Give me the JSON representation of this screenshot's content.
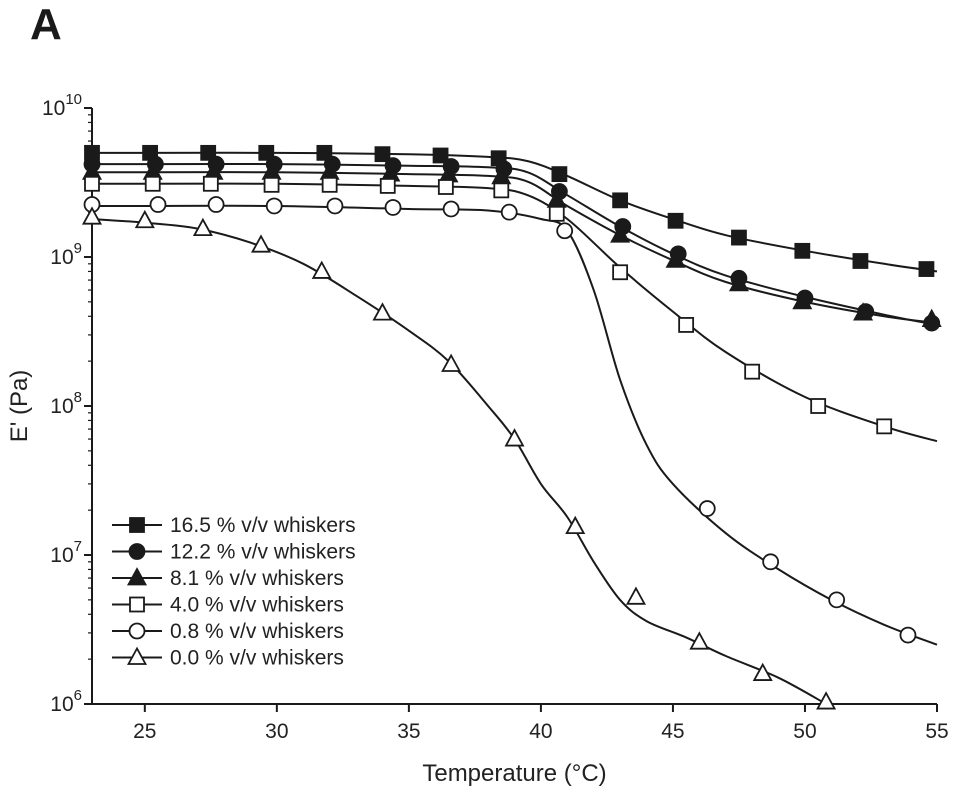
{
  "panel_label": "A",
  "chart_data": {
    "type": "line",
    "title": "",
    "xlabel": "Temperature (°C)",
    "ylabel": "E' (Pa)",
    "xlim": [
      23,
      55
    ],
    "ylim": [
      1000000,
      10000000000
    ],
    "yscale": "log",
    "x_ticks": [
      25,
      30,
      35,
      40,
      45,
      50,
      55
    ],
    "y_ticks": [
      {
        "value": 1000000,
        "base": "10",
        "exp": "6"
      },
      {
        "value": 10000000,
        "base": "10",
        "exp": "7"
      },
      {
        "value": 100000000,
        "base": "10",
        "exp": "8"
      },
      {
        "value": 1000000000,
        "base": "10",
        "exp": "9"
      },
      {
        "value": 10000000000,
        "base": "10",
        "exp": "10"
      }
    ],
    "legend_position": "bottom-left",
    "series": [
      {
        "name": "16.5 % v/v whiskers",
        "marker": "square-filled",
        "curve": [
          [
            23,
            5000000000.0
          ],
          [
            25,
            5000000000.0
          ],
          [
            30,
            5000000000.0
          ],
          [
            35,
            4900000000.0
          ],
          [
            38,
            4700000000.0
          ],
          [
            39.5,
            4400000000.0
          ],
          [
            41,
            3500000000.0
          ],
          [
            43,
            2400000000.0
          ],
          [
            45,
            1800000000.0
          ],
          [
            47,
            1400000000.0
          ],
          [
            50,
            1100000000.0
          ],
          [
            53,
            900000000.0
          ],
          [
            55,
            800000000.0
          ]
        ],
        "markers": [
          [
            23,
            5000000000.0
          ],
          [
            25.2,
            5000000000.0
          ],
          [
            27.4,
            5000000000.0
          ],
          [
            29.6,
            5000000000.0
          ],
          [
            31.8,
            5000000000.0
          ],
          [
            34,
            4900000000.0
          ],
          [
            36.2,
            4800000000.0
          ],
          [
            38.4,
            4600000000.0
          ],
          [
            40.7,
            3600000000.0
          ],
          [
            43,
            2400000000.0
          ],
          [
            45.1,
            1750000000.0
          ],
          [
            47.5,
            1350000000.0
          ],
          [
            49.9,
            1100000000.0
          ],
          [
            52.1,
            940000000.0
          ],
          [
            54.6,
            830000000.0
          ]
        ]
      },
      {
        "name": "12.2 % v/v whiskers",
        "marker": "circle-filled",
        "curve": [
          [
            23,
            4200000000.0
          ],
          [
            25,
            4200000000.0
          ],
          [
            30,
            4200000000.0
          ],
          [
            35,
            4100000000.0
          ],
          [
            38,
            4000000000.0
          ],
          [
            39.5,
            3700000000.0
          ],
          [
            41,
            2600000000.0
          ],
          [
            43,
            1600000000.0
          ],
          [
            45,
            1050000000.0
          ],
          [
            47,
            750000000.0
          ],
          [
            50,
            540000000.0
          ],
          [
            53,
            410000000.0
          ],
          [
            55,
            350000000.0
          ]
        ],
        "markers": [
          [
            23,
            4200000000.0
          ],
          [
            25.4,
            4200000000.0
          ],
          [
            27.7,
            4200000000.0
          ],
          [
            29.9,
            4200000000.0
          ],
          [
            32.1,
            4200000000.0
          ],
          [
            34.4,
            4100000000.0
          ],
          [
            36.6,
            4050000000.0
          ],
          [
            38.6,
            3900000000.0
          ],
          [
            40.7,
            2750000000.0
          ],
          [
            43.1,
            1600000000.0
          ],
          [
            45.2,
            1050000000.0
          ],
          [
            47.5,
            720000000.0
          ],
          [
            50,
            530000000.0
          ],
          [
            52.3,
            430000000.0
          ],
          [
            54.8,
            360000000.0
          ]
        ]
      },
      {
        "name": "8.1 % v/v whiskers",
        "marker": "triangle-filled",
        "curve": [
          [
            23,
            3700000000.0
          ],
          [
            25,
            3700000000.0
          ],
          [
            30,
            3700000000.0
          ],
          [
            35,
            3600000000.0
          ],
          [
            38,
            3500000000.0
          ],
          [
            39.5,
            3200000000.0
          ],
          [
            41,
            2200000000.0
          ],
          [
            43,
            1400000000.0
          ],
          [
            45,
            950000000.0
          ],
          [
            47,
            680000000.0
          ],
          [
            50,
            500000000.0
          ],
          [
            53,
            400000000.0
          ],
          [
            55,
            360000000.0
          ]
        ],
        "markers": [
          [
            23,
            3700000000.0
          ],
          [
            25.3,
            3700000000.0
          ],
          [
            27.6,
            3700000000.0
          ],
          [
            29.8,
            3700000000.0
          ],
          [
            32,
            3700000000.0
          ],
          [
            34.3,
            3600000000.0
          ],
          [
            36.5,
            3550000000.0
          ],
          [
            38.5,
            3450000000.0
          ],
          [
            40.6,
            2400000000.0
          ],
          [
            43,
            1400000000.0
          ],
          [
            45.1,
            950000000.0
          ],
          [
            47.5,
            660000000.0
          ],
          [
            49.9,
            500000000.0
          ],
          [
            52.2,
            420000000.0
          ],
          [
            54.8,
            380000000.0
          ]
        ]
      },
      {
        "name": "4.0 % v/v whiskers",
        "marker": "square-open",
        "curve": [
          [
            23,
            3100000000.0
          ],
          [
            25,
            3100000000.0
          ],
          [
            30,
            3100000000.0
          ],
          [
            35,
            3000000000.0
          ],
          [
            38,
            2900000000.0
          ],
          [
            39.5,
            2600000000.0
          ],
          [
            41,
            1800000000.0
          ],
          [
            43,
            850000000.0
          ],
          [
            45,
            430000000.0
          ],
          [
            47,
            230000000.0
          ],
          [
            50,
            115000000.0
          ],
          [
            53,
            73000000.0
          ],
          [
            55,
            58000000.0
          ]
        ],
        "markers": [
          [
            23,
            3100000000.0
          ],
          [
            25.3,
            3100000000.0
          ],
          [
            27.5,
            3100000000.0
          ],
          [
            29.8,
            3050000000.0
          ],
          [
            32,
            3050000000.0
          ],
          [
            34.2,
            3000000000.0
          ],
          [
            36.4,
            2950000000.0
          ],
          [
            38.5,
            2800000000.0
          ],
          [
            40.6,
            1950000000.0
          ],
          [
            43,
            790000000.0
          ],
          [
            45.5,
            350000000.0
          ],
          [
            48,
            170000000.0
          ],
          [
            50.5,
            100000000.0
          ],
          [
            53,
            73000000.0
          ]
        ]
      },
      {
        "name": "0.8 % v/v whiskers",
        "marker": "circle-open",
        "curve": [
          [
            23,
            2200000000.0
          ],
          [
            25,
            2200000000.0
          ],
          [
            30,
            2200000000.0
          ],
          [
            35,
            2100000000.0
          ],
          [
            38,
            2050000000.0
          ],
          [
            40,
            1800000000.0
          ],
          [
            41,
            1500000000.0
          ],
          [
            42,
            600000000.0
          ],
          [
            43,
            150000000.0
          ],
          [
            44,
            55000000.0
          ],
          [
            45,
            30000000.0
          ],
          [
            47,
            14000000.0
          ],
          [
            49,
            8000000.0
          ],
          [
            51,
            5000000.0
          ],
          [
            53,
            3400000.0
          ],
          [
            55,
            2500000.0
          ]
        ],
        "markers": [
          [
            23,
            2250000000.0
          ],
          [
            25.5,
            2250000000.0
          ],
          [
            27.7,
            2250000000.0
          ],
          [
            29.9,
            2200000000.0
          ],
          [
            32.2,
            2200000000.0
          ],
          [
            34.4,
            2150000000.0
          ],
          [
            36.6,
            2100000000.0
          ],
          [
            38.8,
            2000000000.0
          ],
          [
            40.9,
            1500000000.0
          ],
          [
            46.3,
            20500000.0
          ],
          [
            48.7,
            9000000.0
          ],
          [
            51.2,
            5000000.0
          ],
          [
            53.9,
            2900000.0
          ]
        ]
      },
      {
        "name": "0.0 % v/v whiskers",
        "marker": "triangle-open",
        "curve": [
          [
            23,
            1800000000.0
          ],
          [
            25,
            1700000000.0
          ],
          [
            27,
            1550000000.0
          ],
          [
            29,
            1250000000.0
          ],
          [
            31,
            900000000.0
          ],
          [
            33,
            550000000.0
          ],
          [
            35,
            320000000.0
          ],
          [
            36.5,
            200000000.0
          ],
          [
            38,
            100000000.0
          ],
          [
            39,
            60000000.0
          ],
          [
            40,
            30000000.0
          ],
          [
            41,
            18000000.0
          ],
          [
            42,
            9000000.0
          ],
          [
            43,
            5000000.0
          ],
          [
            44,
            3600000.0
          ],
          [
            45.5,
            2800000.0
          ],
          [
            47,
            2100000.0
          ],
          [
            49,
            1500000.0
          ],
          [
            50.8,
            1000000.0
          ]
        ],
        "markers": [
          [
            23,
            1850000000.0
          ],
          [
            25,
            1750000000.0
          ],
          [
            27.2,
            1550000000.0
          ],
          [
            29.4,
            1200000000.0
          ],
          [
            31.7,
            800000000.0
          ],
          [
            34,
            420000000.0
          ],
          [
            36.6,
            190000000.0
          ],
          [
            39,
            60000000.0
          ],
          [
            41.3,
            15500000.0
          ],
          [
            43.6,
            5200000.0
          ],
          [
            46,
            2600000.0
          ],
          [
            48.4,
            1600000.0
          ],
          [
            50.8,
            1030000.0
          ]
        ]
      }
    ]
  }
}
